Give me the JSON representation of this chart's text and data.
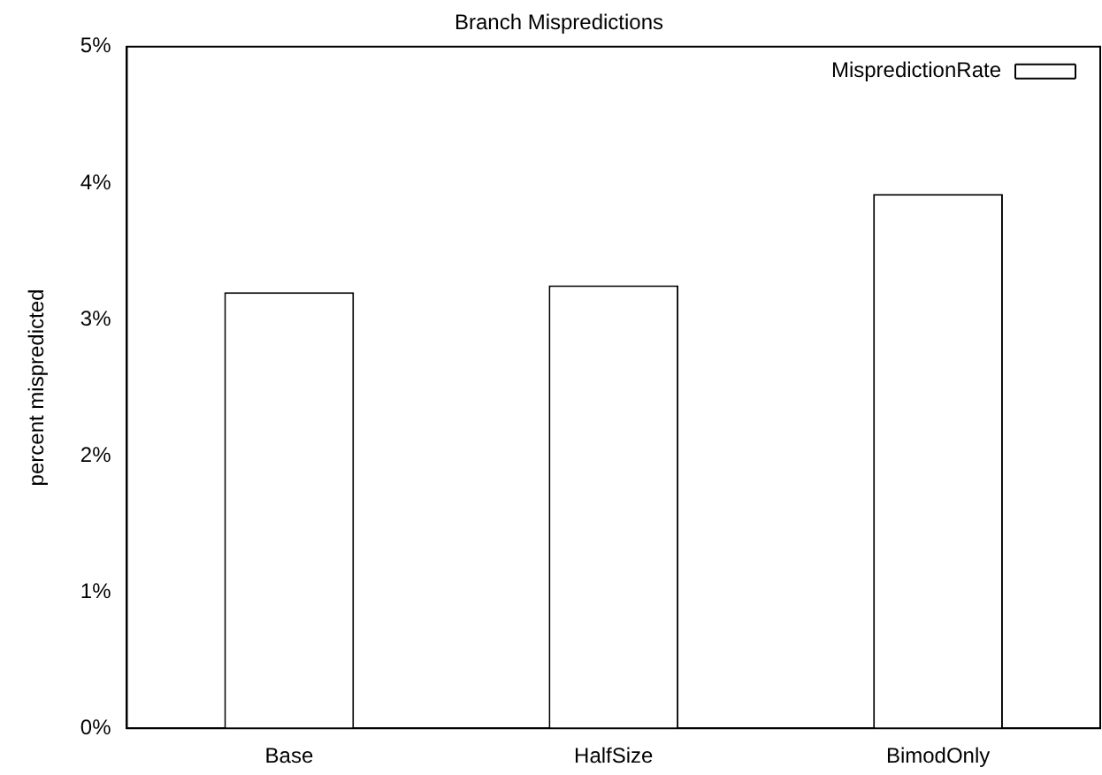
{
  "chart_data": {
    "type": "bar",
    "title": "Branch Mispredictions",
    "ylabel": "percent mispredicted",
    "categories": [
      "Base",
      "HalfSize",
      "BimodOnly"
    ],
    "series": [
      {
        "name": "MispredictionRate",
        "color": "#ffffff",
        "values": [
          3.2,
          3.25,
          3.92
        ]
      }
    ],
    "ylim": [
      0,
      5
    ],
    "yticks": [
      {
        "value": 0,
        "label": "0%"
      },
      {
        "value": 1,
        "label": "1%"
      },
      {
        "value": 2,
        "label": "2%"
      },
      {
        "value": 3,
        "label": "3%"
      },
      {
        "value": 4,
        "label": "4%"
      },
      {
        "value": 5,
        "label": "5%"
      }
    ],
    "grid": false,
    "legend": "top right"
  }
}
